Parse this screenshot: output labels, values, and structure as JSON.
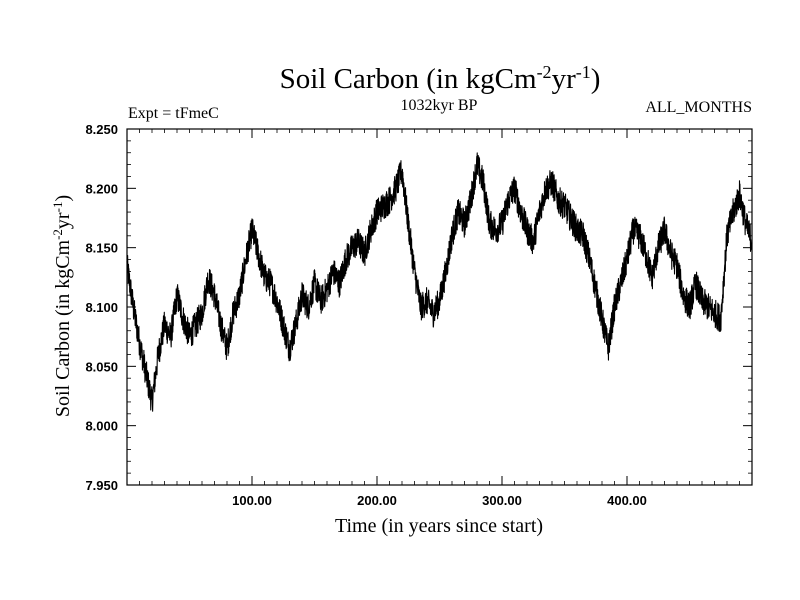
{
  "chart_data": {
    "type": "line",
    "title": "Soil Carbon (in kgCm",
    "title_sup1": "-2",
    "title_mid": "yr",
    "title_sup2": "-1",
    "title_end": ")",
    "subtitle_left": "Expt = tFmeC",
    "subtitle_center": "1032kyr BP",
    "subtitle_right": "ALL_MONTHS",
    "xlabel": "Time (in years since start)",
    "ylabel": "Soil Carbon (in kgCm",
    "ylabel_sup1": "-2",
    "ylabel_mid": "yr",
    "ylabel_sup2": "-1",
    "ylabel_end": ")",
    "xlim": [
      0,
      500
    ],
    "ylim": [
      7.95,
      8.25
    ],
    "xticks": [
      100,
      200,
      300,
      400
    ],
    "xtick_labels": [
      "100.00",
      "200.00",
      "300.00",
      "400.00"
    ],
    "yticks": [
      7.95,
      8.0,
      8.05,
      8.1,
      8.15,
      8.2,
      8.25
    ],
    "ytick_labels": [
      "7.950",
      "8.000",
      "8.050",
      "8.100",
      "8.150",
      "8.200",
      "8.250"
    ],
    "grid": false,
    "noise_amplitude": 0.012,
    "series": [
      {
        "name": "Soil Carbon",
        "color": "#000000",
        "x": [
          0,
          5,
          10,
          15,
          20,
          25,
          30,
          35,
          40,
          45,
          50,
          55,
          60,
          65,
          70,
          75,
          80,
          85,
          90,
          95,
          100,
          105,
          110,
          115,
          120,
          125,
          130,
          135,
          140,
          145,
          150,
          155,
          160,
          165,
          170,
          175,
          180,
          185,
          190,
          195,
          200,
          205,
          210,
          215,
          220,
          225,
          230,
          235,
          240,
          245,
          250,
          255,
          260,
          265,
          270,
          275,
          280,
          285,
          290,
          295,
          300,
          305,
          310,
          315,
          320,
          325,
          330,
          335,
          340,
          345,
          350,
          355,
          360,
          365,
          370,
          375,
          380,
          385,
          390,
          395,
          400,
          405,
          410,
          415,
          420,
          425,
          430,
          435,
          440,
          445,
          450,
          455,
          460,
          465,
          470,
          475,
          480,
          485,
          490,
          495,
          500
        ],
        "values": [
          8.135,
          8.1,
          8.07,
          8.045,
          8.02,
          8.06,
          8.085,
          8.075,
          8.11,
          8.09,
          8.075,
          8.085,
          8.095,
          8.125,
          8.11,
          8.085,
          8.065,
          8.095,
          8.11,
          8.14,
          8.165,
          8.145,
          8.125,
          8.12,
          8.105,
          8.085,
          8.065,
          8.085,
          8.11,
          8.1,
          8.12,
          8.105,
          8.115,
          8.13,
          8.12,
          8.14,
          8.15,
          8.155,
          8.145,
          8.165,
          8.18,
          8.185,
          8.19,
          8.2,
          8.215,
          8.17,
          8.13,
          8.1,
          8.105,
          8.095,
          8.105,
          8.13,
          8.16,
          8.18,
          8.17,
          8.19,
          8.22,
          8.205,
          8.17,
          8.165,
          8.17,
          8.19,
          8.2,
          8.18,
          8.165,
          8.155,
          8.18,
          8.2,
          8.205,
          8.19,
          8.185,
          8.175,
          8.165,
          8.16,
          8.14,
          8.115,
          8.09,
          8.065,
          8.1,
          8.12,
          8.14,
          8.165,
          8.16,
          8.145,
          8.125,
          8.15,
          8.165,
          8.145,
          8.135,
          8.11,
          8.1,
          8.12,
          8.105,
          8.1,
          8.095,
          8.09,
          8.16,
          8.18,
          8.195,
          8.17,
          8.155
        ]
      }
    ]
  }
}
